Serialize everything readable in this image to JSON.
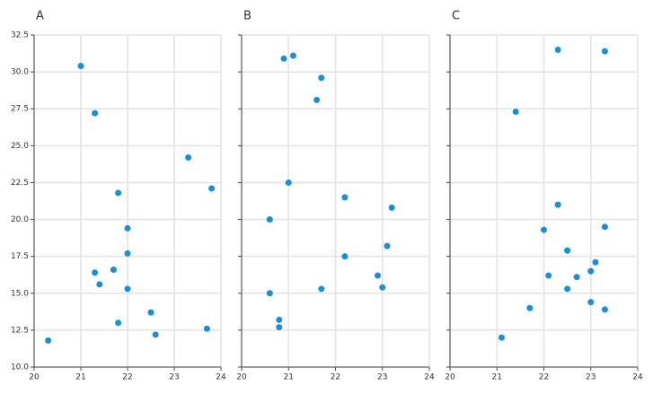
{
  "chart_data": [
    {
      "type": "scatter",
      "title": "A",
      "color": "#1a8fd6",
      "grid": true,
      "ytick_labels": true,
      "xlim": [
        20,
        24
      ],
      "ylim": [
        10,
        32.5
      ],
      "xticks": [
        20,
        21,
        22,
        23,
        24
      ],
      "yticks": [
        {
          "value": 10,
          "label": "10.0"
        },
        12.5,
        {
          "value": 15,
          "label": "15.0"
        },
        17.5,
        {
          "value": 20,
          "label": "20.0"
        },
        22.5,
        {
          "value": 25,
          "label": "25.0"
        },
        27.5,
        {
          "value": 30,
          "label": "30.0"
        },
        32.5
      ],
      "x": [
        20.3,
        21.0,
        21.3,
        21.3,
        21.4,
        21.7,
        21.8,
        21.8,
        22.0,
        22.0,
        22.0,
        22.5,
        22.6,
        23.3,
        23.7,
        23.8
      ],
      "values": [
        11.8,
        30.4,
        27.2,
        16.4,
        15.6,
        16.6,
        21.8,
        13.0,
        19.4,
        17.7,
        15.3,
        13.7,
        12.2,
        24.2,
        12.6,
        22.1
      ]
    },
    {
      "type": "scatter",
      "title": "B",
      "color": "#1a8fd6",
      "grid": true,
      "ytick_labels": false,
      "xlim": [
        20,
        24
      ],
      "ylim": [
        10,
        32.5
      ],
      "xticks": [
        20,
        21,
        22,
        23,
        24
      ],
      "yticks": [
        10,
        12.5,
        15,
        17.5,
        20,
        22.5,
        25,
        27.5,
        30,
        32.5
      ],
      "x": [
        20.9,
        21.1,
        21.7,
        21.6,
        21.0,
        20.6,
        22.2,
        23.2,
        23.1,
        22.2,
        22.9,
        23.0,
        21.7,
        20.6,
        20.8,
        20.8
      ],
      "values": [
        30.9,
        31.1,
        29.6,
        28.1,
        22.5,
        20.0,
        21.5,
        20.8,
        18.2,
        17.5,
        16.2,
        15.4,
        15.3,
        15.0,
        13.2,
        12.7
      ]
    },
    {
      "type": "scatter",
      "title": "C",
      "color": "#1a8fd6",
      "grid": true,
      "ytick_labels": false,
      "xlim": [
        20,
        24
      ],
      "ylim": [
        10,
        32.5
      ],
      "xticks": [
        20,
        21,
        22,
        23,
        24
      ],
      "yticks": [
        10,
        12.5,
        15,
        17.5,
        20,
        22.5,
        25,
        27.5,
        30,
        32.5
      ],
      "x": [
        22.3,
        23.3,
        21.4,
        22.3,
        22.0,
        23.3,
        22.5,
        23.1,
        23.0,
        22.1,
        22.7,
        22.5,
        23.0,
        23.3,
        21.7,
        21.1
      ],
      "values": [
        31.5,
        31.4,
        27.3,
        21.0,
        19.3,
        19.5,
        17.9,
        17.1,
        16.5,
        16.2,
        16.1,
        15.3,
        14.4,
        13.9,
        14.0,
        12.0
      ]
    }
  ]
}
